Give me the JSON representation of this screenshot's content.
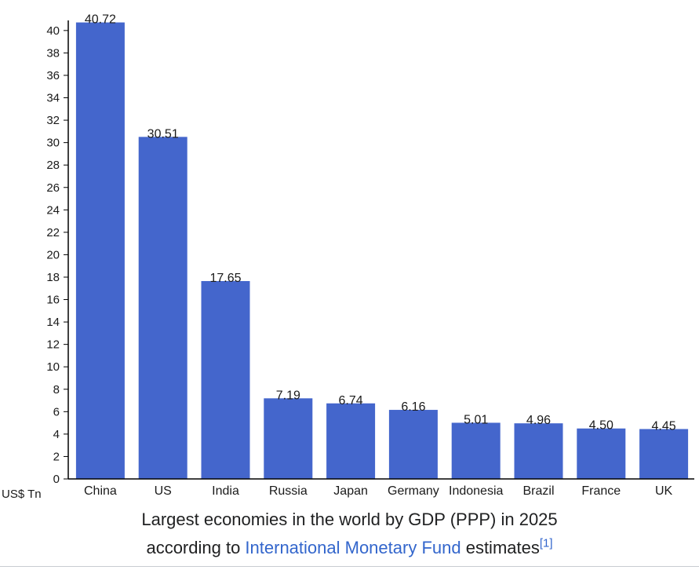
{
  "chart_data": {
    "type": "bar",
    "categories": [
      "China",
      "US",
      "India",
      "Russia",
      "Japan",
      "Germany",
      "Indonesia",
      "Brazil",
      "France",
      "UK"
    ],
    "values": [
      40.72,
      30.51,
      17.65,
      7.19,
      6.74,
      6.16,
      5.01,
      4.96,
      4.5,
      4.45
    ],
    "value_labels": [
      "40.72",
      "30.51",
      "17.65",
      "7.19",
      "6.74",
      "6.16",
      "5.01",
      "4.96",
      "4.50",
      "4.45"
    ],
    "yticks": [
      0,
      2,
      4,
      6,
      8,
      10,
      12,
      14,
      16,
      18,
      20,
      22,
      24,
      26,
      28,
      30,
      32,
      34,
      36,
      38,
      40
    ],
    "ylim": [
      0,
      40.9
    ],
    "ylabel": "US$ Tn",
    "xlabel": "",
    "bar_color": "#4466cc",
    "grid": false,
    "legend": "none"
  },
  "caption": {
    "line1": "Largest economies in the world by GDP (PPP) in 2025",
    "line2_prefix": "according to ",
    "link_text": "International Monetary Fund",
    "line2_suffix": " estimates",
    "footnote": "[1]"
  },
  "colors": {
    "link": "#3366cc",
    "text": "#202122",
    "axis": "#000000"
  }
}
